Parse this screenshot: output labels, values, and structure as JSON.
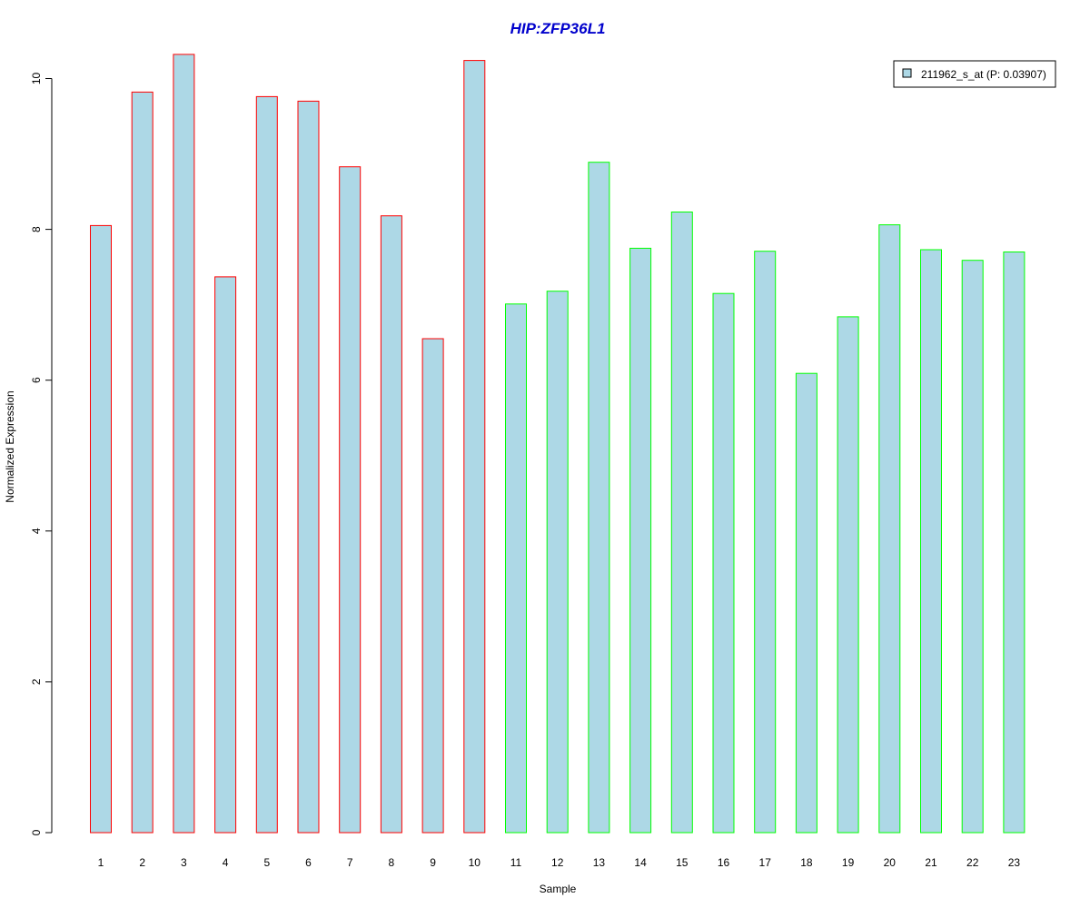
{
  "chart_data": {
    "type": "bar",
    "title": "HIP:ZFP36L1",
    "xlabel": "Sample",
    "ylabel": "Normalized Expression",
    "categories": [
      "1",
      "2",
      "3",
      "4",
      "5",
      "6",
      "7",
      "8",
      "9",
      "10",
      "11",
      "12",
      "13",
      "14",
      "15",
      "16",
      "17",
      "18",
      "19",
      "20",
      "21",
      "22",
      "23"
    ],
    "series": [
      {
        "name": "211962_s_at (P: 0.03907)",
        "values": [
          8.05,
          9.82,
          10.32,
          7.37,
          9.76,
          9.7,
          8.83,
          8.18,
          6.55,
          10.24,
          7.01,
          7.18,
          8.89,
          7.75,
          8.23,
          7.15,
          7.71,
          6.09,
          6.84,
          8.06,
          7.73,
          7.59,
          7.7
        ]
      }
    ],
    "bar_border_colors": [
      "#ff0000",
      "#ff0000",
      "#ff0000",
      "#ff0000",
      "#ff0000",
      "#ff0000",
      "#ff0000",
      "#ff0000",
      "#ff0000",
      "#ff0000",
      "#00ff00",
      "#00ff00",
      "#00ff00",
      "#00ff00",
      "#00ff00",
      "#00ff00",
      "#00ff00",
      "#00ff00",
      "#00ff00",
      "#00ff00",
      "#00ff00",
      "#00ff00",
      "#00ff00"
    ],
    "ylim": [
      0,
      10.4
    ],
    "yticks": [
      0,
      2,
      4,
      6,
      8,
      10
    ],
    "ytick_labels": [
      "0",
      "2",
      "4",
      "6",
      "8",
      "10"
    ],
    "grid": false,
    "legend_position": "top-right",
    "colors": {
      "title": "#0000cc",
      "bar_fill": "#add8e6",
      "axis": "#000000",
      "legend_border": "#000000"
    }
  }
}
